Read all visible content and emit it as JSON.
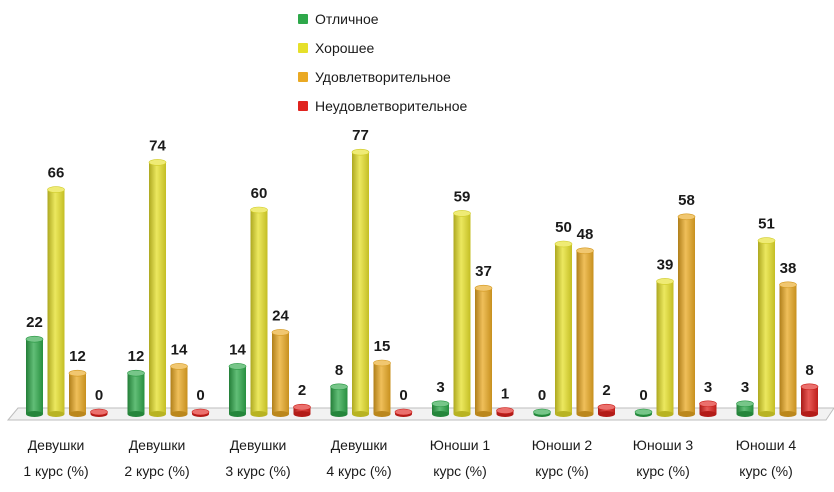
{
  "chart_data": {
    "type": "bar",
    "categories": [
      [
        "Девушки",
        "1 курс (%)"
      ],
      [
        "Девушки",
        "2 курс (%)"
      ],
      [
        "Девушки",
        "3 курс (%)"
      ],
      [
        "Девушки",
        "4 курс (%)"
      ],
      [
        "Юноши 1",
        "курс (%)"
      ],
      [
        "Юноши 2",
        "курс (%)"
      ],
      [
        "Юноши 3",
        "курс (%)"
      ],
      [
        "Юноши 4",
        "курс (%)"
      ]
    ],
    "series": [
      {
        "name": "Отличное",
        "color": "#2ea84a",
        "values": [
          22,
          12,
          14,
          8,
          3,
          0,
          0,
          3
        ]
      },
      {
        "name": "Хорошее",
        "color": "#e6e02a",
        "values": [
          66,
          74,
          60,
          77,
          59,
          50,
          39,
          51
        ]
      },
      {
        "name": "Удовлетворительное",
        "color": "#eaa923",
        "values": [
          12,
          14,
          24,
          15,
          37,
          48,
          58,
          38
        ]
      },
      {
        "name": "Неудовлетворительное",
        "color": "#e0231e",
        "values": [
          0,
          0,
          2,
          0,
          1,
          2,
          3,
          8
        ]
      }
    ],
    "ylim": [
      0,
      80
    ],
    "grid": false,
    "legend": "top-center",
    "data_labels": true
  }
}
